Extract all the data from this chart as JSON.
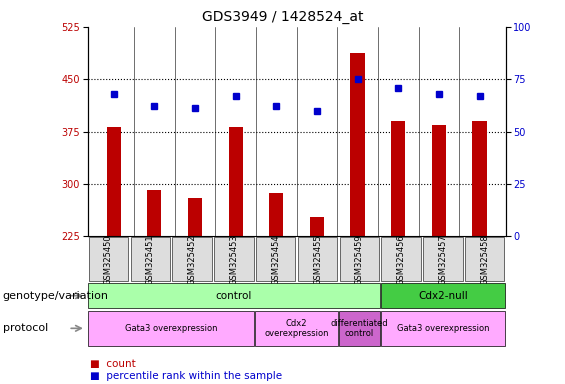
{
  "title": "GDS3949 / 1428524_at",
  "samples": [
    "GSM325450",
    "GSM325451",
    "GSM325452",
    "GSM325453",
    "GSM325454",
    "GSM325455",
    "GSM325459",
    "GSM325456",
    "GSM325457",
    "GSM325458"
  ],
  "counts": [
    382,
    291,
    280,
    382,
    287,
    252,
    487,
    390,
    385,
    390
  ],
  "percentile_ranks": [
    68,
    62,
    61,
    67,
    62,
    60,
    75,
    71,
    68,
    67
  ],
  "ylim_left": [
    225,
    525
  ],
  "ylim_right": [
    0,
    100
  ],
  "yticks_left": [
    225,
    300,
    375,
    450,
    525
  ],
  "yticks_right": [
    0,
    25,
    50,
    75,
    100
  ],
  "bar_color": "#bb0000",
  "dot_color": "#0000cc",
  "bar_bottom": 225,
  "genotype_row": [
    {
      "label": "control",
      "start": 0,
      "end": 7,
      "color": "#aaffaa"
    },
    {
      "label": "Cdx2-null",
      "start": 7,
      "end": 10,
      "color": "#44cc44"
    }
  ],
  "protocol_row": [
    {
      "label": "Gata3 overexpression",
      "start": 0,
      "end": 4,
      "color": "#ffaaff"
    },
    {
      "label": "Cdx2\noverexpression",
      "start": 4,
      "end": 6,
      "color": "#ffaaff"
    },
    {
      "label": "differentiated\ncontrol",
      "start": 6,
      "end": 7,
      "color": "#cc66cc"
    },
    {
      "label": "Gata3 overexpression",
      "start": 7,
      "end": 10,
      "color": "#ffaaff"
    }
  ],
  "tick_area_color": "#dddddd",
  "legend_count_color": "#bb0000",
  "legend_dot_color": "#0000cc",
  "hlines": [
    300,
    375,
    450
  ],
  "title_fontsize": 10,
  "tick_fontsize": 7,
  "row_fontsize": 7.5,
  "label_fontsize": 8
}
